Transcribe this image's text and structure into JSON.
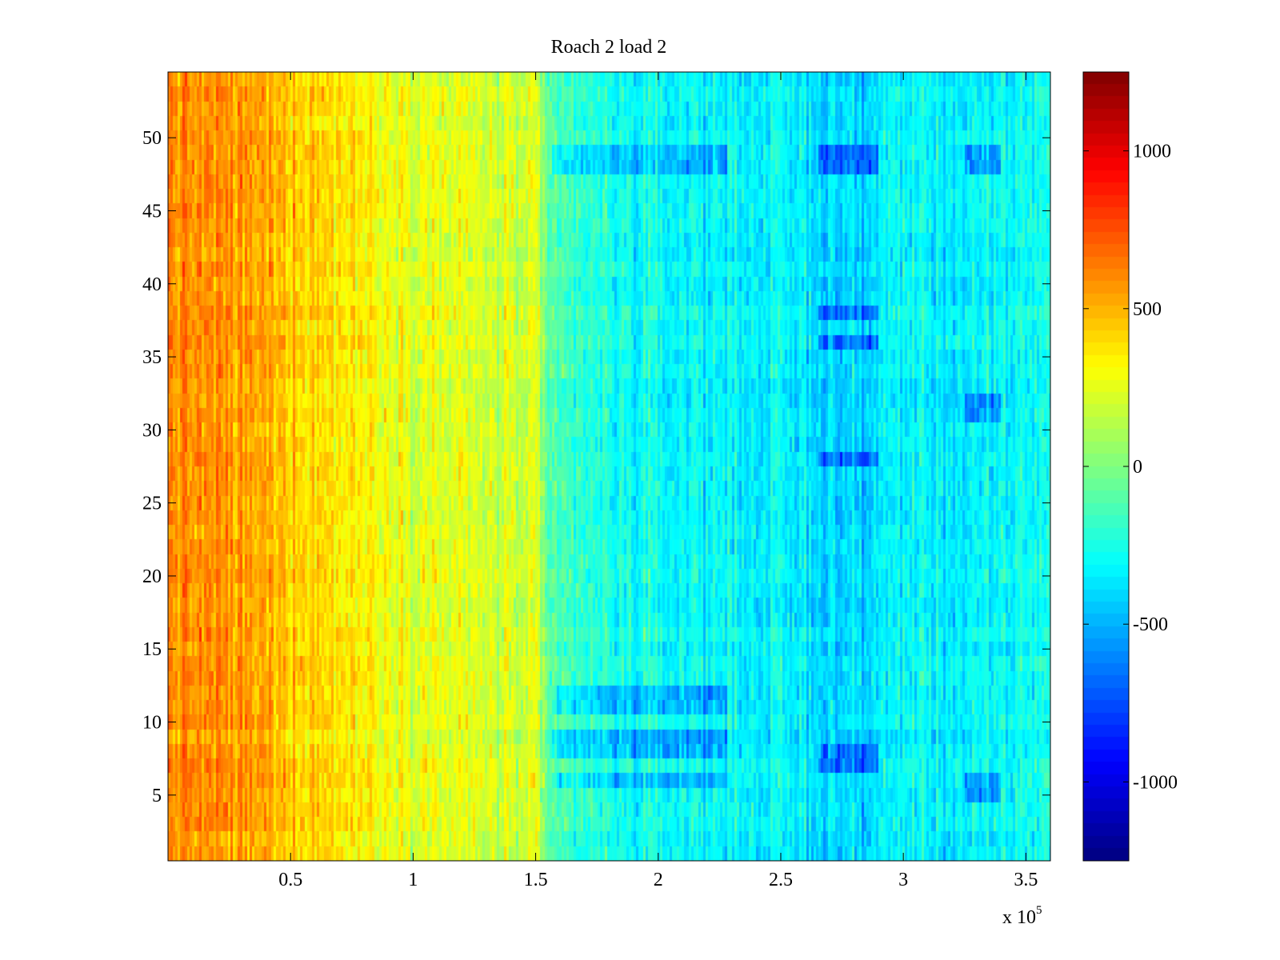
{
  "chart_data": {
    "type": "heatmap",
    "title": "Roach 2 load 2",
    "xlabel": "",
    "ylabel": "",
    "x_multiplier_label": "x 10",
    "x_multiplier_exponent": "5",
    "xlim": [
      0,
      3.6
    ],
    "ylim": [
      0.5,
      54.5
    ],
    "x_ticks": [
      0.5,
      1,
      1.5,
      2,
      2.5,
      3,
      3.5
    ],
    "x_tick_labels": [
      "0.5",
      "1",
      "1.5",
      "2",
      "2.5",
      "3",
      "3.5"
    ],
    "y_ticks": [
      5,
      10,
      15,
      20,
      25,
      30,
      35,
      40,
      45,
      50
    ],
    "y_tick_labels": [
      "5",
      "10",
      "15",
      "20",
      "25",
      "30",
      "35",
      "40",
      "45",
      "50"
    ],
    "rows": 54,
    "colormap": "jet",
    "colorbar": {
      "clim": [
        -1250,
        1250
      ],
      "ticks": [
        -1000,
        -500,
        0,
        500,
        1000
      ],
      "tick_labels": [
        "-1000",
        "-500",
        "0",
        "500",
        "1000"
      ]
    },
    "column_profile": {
      "x": [
        0,
        0.25,
        0.5,
        0.75,
        1.0,
        1.25,
        1.5,
        1.55,
        1.8,
        2.0,
        2.3,
        2.6,
        2.8,
        3.0,
        3.3,
        3.6
      ],
      "mean_value": [
        600,
        560,
        470,
        360,
        280,
        220,
        180,
        -120,
        -260,
        -300,
        -310,
        -360,
        -430,
        -300,
        -360,
        -240
      ]
    },
    "row_profile_note": "",
    "anomaly_bands": [
      {
        "x_range": [
          1.57,
          2.28
        ],
        "rows": [
          48,
          49,
          11,
          12,
          8,
          9,
          6
        ],
        "offset": -220
      },
      {
        "x_range": [
          2.65,
          2.9
        ],
        "rows": [
          48,
          49,
          38,
          36,
          28,
          8,
          7
        ],
        "offset": -300
      },
      {
        "x_range": [
          3.25,
          3.4
        ],
        "rows": [
          48,
          49,
          32,
          31,
          6,
          5
        ],
        "offset": -260
      }
    ]
  }
}
